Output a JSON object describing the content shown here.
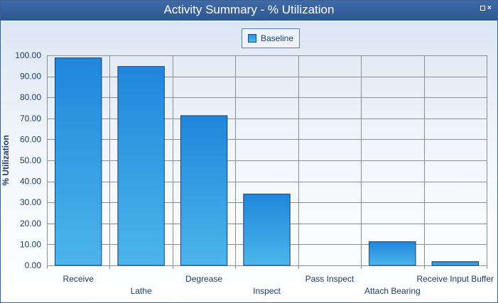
{
  "window": {
    "title": "Activity Summary - % Utilization"
  },
  "legend": {
    "label": "Baseline"
  },
  "colors": {
    "bar_top": "#1f86db",
    "bar_bottom": "#4db5ea",
    "bar_border": "#1b3f73",
    "grid": "#8a8f96"
  },
  "chart_data": {
    "type": "bar",
    "categories": [
      "Receive",
      "Lathe",
      "Degrease",
      "Inspect",
      "Pass Inspect",
      "Attach Bearing",
      "Receive Input Buffer"
    ],
    "series": [
      {
        "name": "Baseline",
        "values": [
          98.8,
          94.7,
          71.3,
          34.0,
          0.0,
          11.3,
          1.8
        ]
      }
    ],
    "ylabel": "% Utilization",
    "ylim": [
      0,
      100
    ],
    "yticks": [
      "0.00",
      "10.00",
      "20.00",
      "30.00",
      "40.00",
      "50.00",
      "60.00",
      "70.00",
      "80.00",
      "90.00",
      "100.00"
    ],
    "grid": true,
    "legend_position": "top-center"
  }
}
